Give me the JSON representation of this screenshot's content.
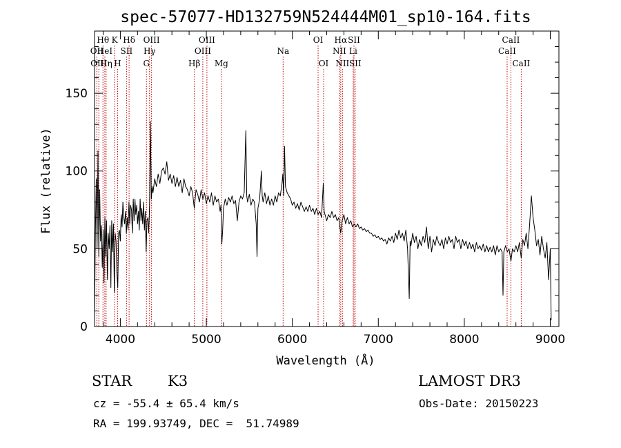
{
  "header": {
    "title": "spec-57077-HD132759N524444M01_sp10-164.fits"
  },
  "info": {
    "class_label": "STAR",
    "subclass": "K3",
    "survey": "LAMOST DR3",
    "cz": "cz = -55.4 ± 65.4 km/s",
    "obs_date": "Obs-Date: 20150223",
    "coords": "RA = 199.93749, DEC =  51.74989"
  },
  "chart_data": {
    "type": "line",
    "title": "spec-57077-HD132759N524444M01_sp10-164.fits",
    "xlabel": "Wavelength (Å)",
    "ylabel": "Flux (relative)",
    "xlim": [
      3700,
      9100
    ],
    "ylim": [
      0,
      190
    ],
    "xticks": [
      4000,
      5000,
      6000,
      7000,
      8000,
      9000
    ],
    "yticks": [
      0,
      50,
      100,
      150
    ],
    "x_minor_step": 200,
    "y_minor_step": 10,
    "spectrum": [
      [
        3700,
        5
      ],
      [
        3710,
        60
      ],
      [
        3720,
        95
      ],
      [
        3730,
        50
      ],
      [
        3740,
        113
      ],
      [
        3750,
        45
      ],
      [
        3760,
        88
      ],
      [
        3770,
        55
      ],
      [
        3780,
        65
      ],
      [
        3790,
        38
      ],
      [
        3800,
        62
      ],
      [
        3810,
        28
      ],
      [
        3820,
        70
      ],
      [
        3830,
        45
      ],
      [
        3840,
        68
      ],
      [
        3850,
        30
      ],
      [
        3860,
        60
      ],
      [
        3870,
        50
      ],
      [
        3880,
        65
      ],
      [
        3890,
        25
      ],
      [
        3900,
        68
      ],
      [
        3910,
        48
      ],
      [
        3920,
        66
      ],
      [
        3930,
        22
      ],
      [
        3940,
        60
      ],
      [
        3950,
        55
      ],
      [
        3960,
        35
      ],
      [
        3970,
        25
      ],
      [
        3980,
        60
      ],
      [
        3990,
        62
      ],
      [
        4000,
        55
      ],
      [
        4010,
        72
      ],
      [
        4020,
        64
      ],
      [
        4030,
        80
      ],
      [
        4040,
        70
      ],
      [
        4050,
        66
      ],
      [
        4060,
        74
      ],
      [
        4070,
        60
      ],
      [
        4080,
        70
      ],
      [
        4090,
        62
      ],
      [
        4100,
        80
      ],
      [
        4110,
        66
      ],
      [
        4120,
        78
      ],
      [
        4130,
        75
      ],
      [
        4140,
        60
      ],
      [
        4150,
        82
      ],
      [
        4160,
        68
      ],
      [
        4170,
        82
      ],
      [
        4180,
        72
      ],
      [
        4190,
        78
      ],
      [
        4200,
        66
      ],
      [
        4210,
        74
      ],
      [
        4220,
        62
      ],
      [
        4230,
        82
      ],
      [
        4240,
        68
      ],
      [
        4250,
        76
      ],
      [
        4260,
        66
      ],
      [
        4270,
        80
      ],
      [
        4280,
        62
      ],
      [
        4290,
        74
      ],
      [
        4300,
        48
      ],
      [
        4310,
        68
      ],
      [
        4320,
        70
      ],
      [
        4330,
        60
      ],
      [
        4340,
        78
      ],
      [
        4350,
        132
      ],
      [
        4360,
        82
      ],
      [
        4370,
        90
      ],
      [
        4380,
        86
      ],
      [
        4400,
        95
      ],
      [
        4420,
        90
      ],
      [
        4440,
        98
      ],
      [
        4460,
        92
      ],
      [
        4480,
        100
      ],
      [
        4500,
        102
      ],
      [
        4520,
        98
      ],
      [
        4540,
        106
      ],
      [
        4560,
        94
      ],
      [
        4580,
        98
      ],
      [
        4600,
        92
      ],
      [
        4620,
        97
      ],
      [
        4640,
        90
      ],
      [
        4660,
        96
      ],
      [
        4680,
        90
      ],
      [
        4700,
        94
      ],
      [
        4720,
        86
      ],
      [
        4740,
        95
      ],
      [
        4760,
        90
      ],
      [
        4780,
        88
      ],
      [
        4800,
        84
      ],
      [
        4820,
        90
      ],
      [
        4840,
        86
      ],
      [
        4860,
        76
      ],
      [
        4880,
        88
      ],
      [
        4900,
        85
      ],
      [
        4920,
        80
      ],
      [
        4940,
        88
      ],
      [
        4960,
        82
      ],
      [
        4980,
        86
      ],
      [
        5000,
        79
      ],
      [
        5020,
        84
      ],
      [
        5040,
        80
      ],
      [
        5060,
        86
      ],
      [
        5080,
        78
      ],
      [
        5100,
        84
      ],
      [
        5120,
        80
      ],
      [
        5140,
        82
      ],
      [
        5160,
        74
      ],
      [
        5170,
        78
      ],
      [
        5180,
        53
      ],
      [
        5190,
        62
      ],
      [
        5200,
        76
      ],
      [
        5220,
        82
      ],
      [
        5240,
        78
      ],
      [
        5260,
        83
      ],
      [
        5280,
        80
      ],
      [
        5300,
        84
      ],
      [
        5320,
        79
      ],
      [
        5340,
        81
      ],
      [
        5360,
        68
      ],
      [
        5380,
        80
      ],
      [
        5400,
        84
      ],
      [
        5420,
        82
      ],
      [
        5440,
        86
      ],
      [
        5460,
        126
      ],
      [
        5470,
        84
      ],
      [
        5480,
        80
      ],
      [
        5500,
        85
      ],
      [
        5520,
        78
      ],
      [
        5540,
        82
      ],
      [
        5560,
        80
      ],
      [
        5580,
        66
      ],
      [
        5590,
        45
      ],
      [
        5600,
        76
      ],
      [
        5620,
        82
      ],
      [
        5640,
        100
      ],
      [
        5650,
        84
      ],
      [
        5660,
        80
      ],
      [
        5680,
        86
      ],
      [
        5700,
        79
      ],
      [
        5720,
        84
      ],
      [
        5740,
        78
      ],
      [
        5760,
        82
      ],
      [
        5780,
        78
      ],
      [
        5800,
        84
      ],
      [
        5820,
        80
      ],
      [
        5840,
        86
      ],
      [
        5860,
        84
      ],
      [
        5880,
        92
      ],
      [
        5890,
        98
      ],
      [
        5900,
        84
      ],
      [
        5910,
        116
      ],
      [
        5920,
        90
      ],
      [
        5940,
        86
      ],
      [
        5960,
        84
      ],
      [
        5980,
        82
      ],
      [
        6000,
        78
      ],
      [
        6020,
        80
      ],
      [
        6040,
        76
      ],
      [
        6060,
        79
      ],
      [
        6080,
        75
      ],
      [
        6100,
        80
      ],
      [
        6120,
        77
      ],
      [
        6140,
        74
      ],
      [
        6160,
        77
      ],
      [
        6180,
        74
      ],
      [
        6200,
        78
      ],
      [
        6220,
        74
      ],
      [
        6240,
        76
      ],
      [
        6260,
        72
      ],
      [
        6280,
        76
      ],
      [
        6300,
        72
      ],
      [
        6320,
        74
      ],
      [
        6340,
        70
      ],
      [
        6360,
        92
      ],
      [
        6370,
        74
      ],
      [
        6380,
        72
      ],
      [
        6400,
        68
      ],
      [
        6420,
        72
      ],
      [
        6440,
        70
      ],
      [
        6460,
        74
      ],
      [
        6480,
        70
      ],
      [
        6500,
        72
      ],
      [
        6520,
        68
      ],
      [
        6540,
        70
      ],
      [
        6563,
        60
      ],
      [
        6580,
        68
      ],
      [
        6600,
        72
      ],
      [
        6620,
        66
      ],
      [
        6640,
        70
      ],
      [
        6660,
        66
      ],
      [
        6680,
        68
      ],
      [
        6700,
        64
      ],
      [
        6720,
        66
      ],
      [
        6740,
        64
      ],
      [
        6760,
        66
      ],
      [
        6780,
        63
      ],
      [
        6800,
        64
      ],
      [
        6820,
        62
      ],
      [
        6840,
        63
      ],
      [
        6860,
        61
      ],
      [
        6880,
        62
      ],
      [
        6900,
        60
      ],
      [
        6920,
        60
      ],
      [
        6940,
        58
      ],
      [
        6960,
        59
      ],
      [
        6980,
        57
      ],
      [
        7000,
        58
      ],
      [
        7020,
        56
      ],
      [
        7040,
        57
      ],
      [
        7060,
        55
      ],
      [
        7080,
        56
      ],
      [
        7100,
        53
      ],
      [
        7120,
        57
      ],
      [
        7140,
        55
      ],
      [
        7160,
        58
      ],
      [
        7180,
        54
      ],
      [
        7200,
        60
      ],
      [
        7220,
        56
      ],
      [
        7240,
        62
      ],
      [
        7260,
        57
      ],
      [
        7280,
        60
      ],
      [
        7300,
        55
      ],
      [
        7320,
        62
      ],
      [
        7340,
        50
      ],
      [
        7360,
        18
      ],
      [
        7370,
        55
      ],
      [
        7380,
        52
      ],
      [
        7400,
        60
      ],
      [
        7420,
        54
      ],
      [
        7440,
        58
      ],
      [
        7460,
        50
      ],
      [
        7480,
        56
      ],
      [
        7500,
        52
      ],
      [
        7520,
        58
      ],
      [
        7540,
        54
      ],
      [
        7560,
        64
      ],
      [
        7580,
        50
      ],
      [
        7600,
        58
      ],
      [
        7620,
        48
      ],
      [
        7640,
        56
      ],
      [
        7660,
        52
      ],
      [
        7680,
        58
      ],
      [
        7700,
        54
      ],
      [
        7720,
        52
      ],
      [
        7740,
        56
      ],
      [
        7760,
        50
      ],
      [
        7780,
        57
      ],
      [
        7800,
        53
      ],
      [
        7820,
        58
      ],
      [
        7840,
        54
      ],
      [
        7860,
        56
      ],
      [
        7880,
        50
      ],
      [
        7900,
        58
      ],
      [
        7920,
        54
      ],
      [
        7940,
        56
      ],
      [
        7960,
        50
      ],
      [
        7980,
        56
      ],
      [
        8000,
        52
      ],
      [
        8020,
        55
      ],
      [
        8040,
        50
      ],
      [
        8060,
        54
      ],
      [
        8080,
        50
      ],
      [
        8100,
        53
      ],
      [
        8120,
        48
      ],
      [
        8140,
        54
      ],
      [
        8160,
        50
      ],
      [
        8180,
        52
      ],
      [
        8200,
        49
      ],
      [
        8220,
        53
      ],
      [
        8240,
        48
      ],
      [
        8260,
        52
      ],
      [
        8280,
        48
      ],
      [
        8300,
        51
      ],
      [
        8320,
        48
      ],
      [
        8340,
        52
      ],
      [
        8360,
        46
      ],
      [
        8380,
        52
      ],
      [
        8400,
        48
      ],
      [
        8420,
        50
      ],
      [
        8440,
        48
      ],
      [
        8450,
        20
      ],
      [
        8460,
        48
      ],
      [
        8480,
        52
      ],
      [
        8500,
        48
      ],
      [
        8520,
        50
      ],
      [
        8542,
        42
      ],
      [
        8560,
        50
      ],
      [
        8580,
        48
      ],
      [
        8600,
        52
      ],
      [
        8620,
        48
      ],
      [
        8640,
        54
      ],
      [
        8662,
        44
      ],
      [
        8680,
        56
      ],
      [
        8700,
        52
      ],
      [
        8720,
        60
      ],
      [
        8740,
        50
      ],
      [
        8760,
        66
      ],
      [
        8780,
        84
      ],
      [
        8800,
        70
      ],
      [
        8820,
        62
      ],
      [
        8840,
        52
      ],
      [
        8860,
        56
      ],
      [
        8880,
        46
      ],
      [
        8900,
        58
      ],
      [
        8920,
        50
      ],
      [
        8940,
        44
      ],
      [
        8960,
        54
      ],
      [
        8980,
        30
      ],
      [
        9000,
        50
      ],
      [
        9010,
        4
      ]
    ],
    "spectral_lines": [
      {
        "label": "Hθ",
        "wavelength": 3798,
        "row": 1
      },
      {
        "label": "OII",
        "wavelength": 3727,
        "row": 2
      },
      {
        "label": "OIII",
        "wavelength": 3750,
        "row": 3
      },
      {
        "label": "HeI",
        "wavelength": 3820,
        "row": 2
      },
      {
        "label": "Hη",
        "wavelength": 3835,
        "row": 3
      },
      {
        "label": "K",
        "wavelength": 3934,
        "row": 1
      },
      {
        "label": "H",
        "wavelength": 3969,
        "row": 3
      },
      {
        "label": "Hδ",
        "wavelength": 4102,
        "row": 1
      },
      {
        "label": "SII",
        "wavelength": 4072,
        "row": 2
      },
      {
        "label": "OIII",
        "wavelength": 4363,
        "row": 1
      },
      {
        "label": "Hγ",
        "wavelength": 4340,
        "row": 2
      },
      {
        "label": "G",
        "wavelength": 4304,
        "row": 3
      },
      {
        "label": "Hβ",
        "wavelength": 4861,
        "row": 3
      },
      {
        "label": "OIII",
        "wavelength": 5007,
        "row": 1
      },
      {
        "label": "OIII",
        "wavelength": 4959,
        "row": 2
      },
      {
        "label": "Mg",
        "wavelength": 5175,
        "row": 3
      },
      {
        "label": "Na",
        "wavelength": 5893,
        "row": 2
      },
      {
        "label": "OI",
        "wavelength": 6300,
        "row": 1
      },
      {
        "label": "OI",
        "wavelength": 6364,
        "row": 3
      },
      {
        "label": "Hα",
        "wavelength": 6563,
        "row": 1
      },
      {
        "label": "NII",
        "wavelength": 6548,
        "row": 2
      },
      {
        "label": "NII",
        "wavelength": 6583,
        "row": 3
      },
      {
        "label": "SII",
        "wavelength": 6717,
        "row": 1
      },
      {
        "label": "Li",
        "wavelength": 6708,
        "row": 2
      },
      {
        "label": "SII",
        "wavelength": 6731,
        "row": 3
      },
      {
        "label": "CaII",
        "wavelength": 8542,
        "row": 1
      },
      {
        "label": "CaII",
        "wavelength": 8498,
        "row": 2
      },
      {
        "label": "CaII",
        "wavelength": 8662,
        "row": 3
      }
    ]
  }
}
